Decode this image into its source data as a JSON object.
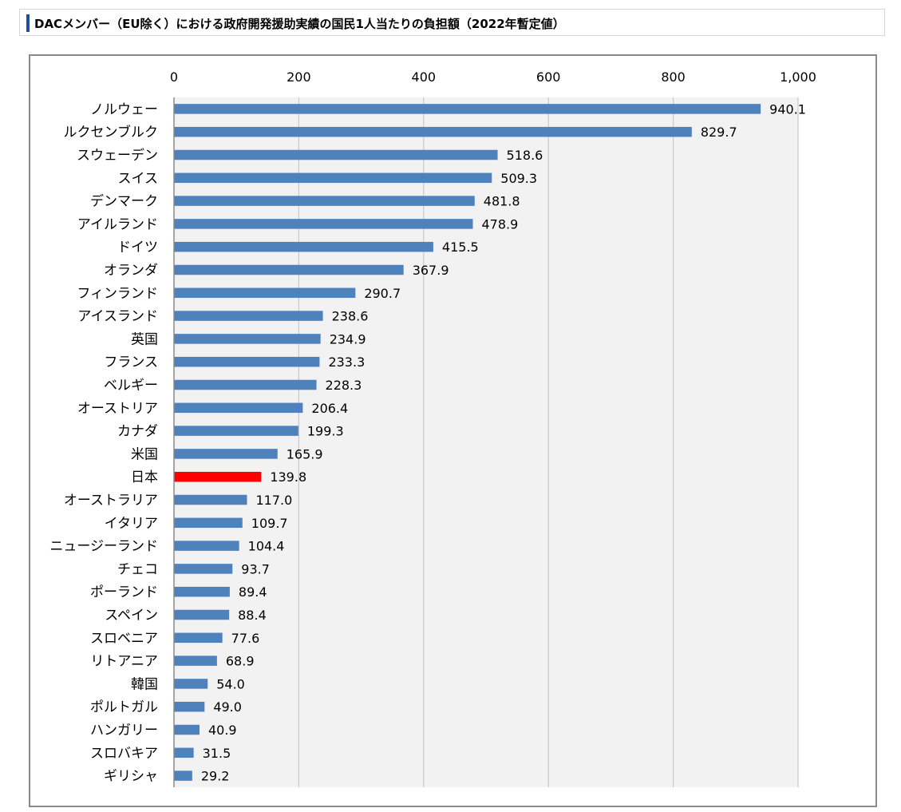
{
  "header": {
    "title": "DACメンバー（EU除く）における政府開発援助実績の国民1人当たりの負担額（2022年暫定値）"
  },
  "colors": {
    "bar": "#4f81bd",
    "highlight": "#ff0000",
    "plot_background": "#f2f2f2",
    "grid": "#c8c8c8"
  },
  "chart_data": {
    "type": "bar",
    "orientation": "horizontal",
    "title": "",
    "xlabel": "",
    "ylabel": "",
    "xlim": [
      0,
      1000
    ],
    "x_ticks": [
      "0",
      "200",
      "400",
      "600",
      "800",
      "1,000"
    ],
    "x_tick_values": [
      0,
      200,
      400,
      600,
      800,
      1000
    ],
    "x_axis_position": "top",
    "grid": true,
    "legend": "none",
    "highlighted_category": "日本",
    "categories": [
      "ノルウェー",
      "ルクセンブルク",
      "スウェーデン",
      "スイス",
      "デンマーク",
      "アイルランド",
      "ドイツ",
      "オランダ",
      "フィンランド",
      "アイスランド",
      "英国",
      "フランス",
      "ベルギー",
      "オーストリア",
      "カナダ",
      "米国",
      "日本",
      "オーストラリア",
      "イタリア",
      "ニュージーランド",
      "チェコ",
      "ポーランド",
      "スペイン",
      "スロベニア",
      "リトアニア",
      "韓国",
      "ポルトガル",
      "ハンガリー",
      "スロバキア",
      "ギリシャ"
    ],
    "values": [
      940.1,
      829.7,
      518.6,
      509.3,
      481.8,
      478.9,
      415.5,
      367.9,
      290.7,
      238.6,
      234.9,
      233.3,
      228.3,
      206.4,
      199.3,
      165.9,
      139.8,
      117.0,
      109.7,
      104.4,
      93.7,
      89.4,
      88.4,
      77.6,
      68.9,
      54.0,
      49.0,
      40.9,
      31.5,
      29.2
    ],
    "value_labels": [
      "940.1",
      "829.7",
      "518.6",
      "509.3",
      "481.8",
      "478.9",
      "415.5",
      "367.9",
      "290.7",
      "238.6",
      "234.9",
      "233.3",
      "228.3",
      "206.4",
      "199.3",
      "165.9",
      "139.8",
      "117.0",
      "109.7",
      "104.4",
      "93.7",
      "89.4",
      "88.4",
      "77.6",
      "68.9",
      "54.0",
      "49.0",
      "40.9",
      "31.5",
      "29.2"
    ]
  }
}
